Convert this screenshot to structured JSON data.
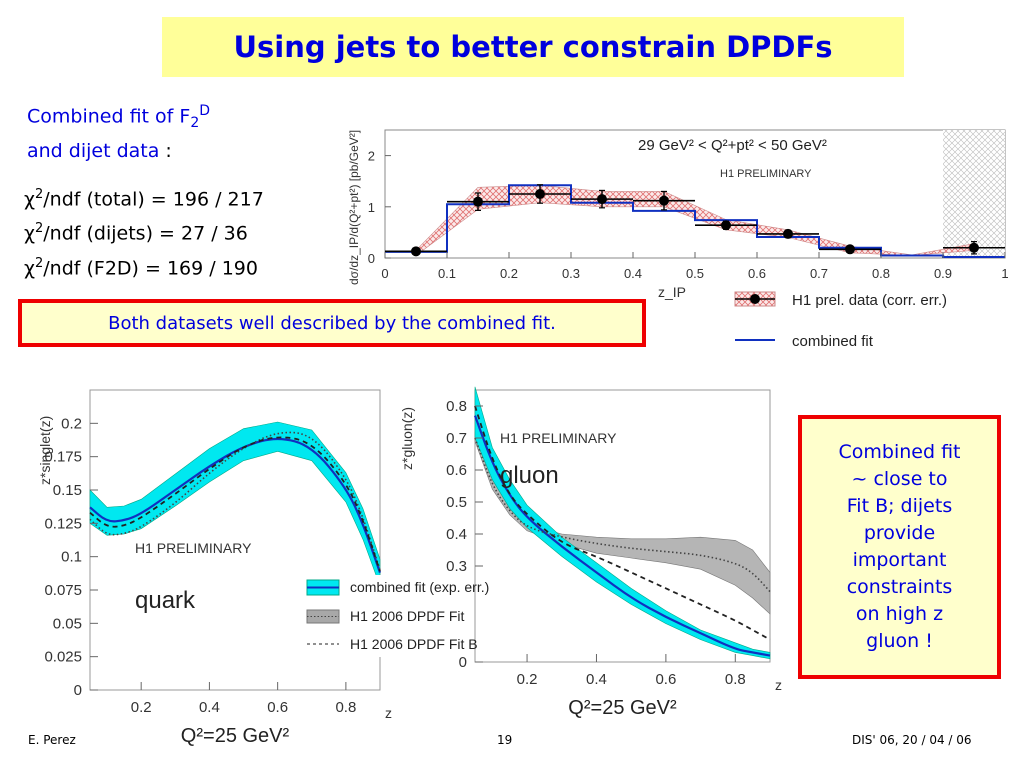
{
  "slide": {
    "title": "Using jets to better constrain DPDFs",
    "intro_line1_prefix": "Combined fit of F",
    "intro_sub": "2",
    "intro_sup": "D",
    "intro_line2": "and dijet data",
    "intro_colon": " :",
    "chi2": [
      {
        "symbol": "χ",
        "sup": "2",
        "text": "/ndf (total) = 196 / 217"
      },
      {
        "symbol": "χ",
        "sup": "2",
        "text": "/ndf (dijets) = 27 / 36"
      },
      {
        "symbol": "χ",
        "sup": "2",
        "text": "/ndf (F2D) = 169 / 190"
      }
    ],
    "callout_left": "Both datasets well described by the combined fit.",
    "callout_right": [
      "Combined fit",
      "~ close to",
      "Fit B; dijets",
      "provide",
      "important",
      "constraints",
      "on high z",
      "gluon !"
    ],
    "footer": {
      "author": "E. Perez",
      "page": "19",
      "conference": "DIS' 06, 20 / 04 / 06"
    },
    "colors": {
      "title_bg": "#ffff99",
      "title_text": "#0000dd",
      "callout_border": "#ee0000",
      "callout_bg": "#ffffcc",
      "band_cyan": "#00e8f0",
      "fit_blue": "#1030c0",
      "gray_band": "#a8a8a8"
    }
  },
  "chart_data": [
    {
      "type": "line",
      "title": "29 GeV² < Q²+pt² < 50 GeV²",
      "annotation": "H1 PRELIMINARY",
      "xlabel": "z_IP",
      "ylabel": "dσ/dz_IP/d(Q²+pt²) [pb/GeV²]",
      "xlim": [
        0,
        1
      ],
      "ylim": [
        0,
        2.5
      ],
      "xticks": [
        "0",
        "0.1",
        "0.2",
        "0.3",
        "0.4",
        "0.5",
        "0.6",
        "0.7",
        "0.8",
        "0.9",
        "1"
      ],
      "yticks": [
        "0",
        "1",
        "2"
      ],
      "bins": [
        0,
        0.1,
        0.2,
        0.3,
        0.4,
        0.5,
        0.6,
        0.7,
        0.8,
        0.9,
        1.0
      ],
      "series": [
        {
          "name": "H1 prel. data (corr. err.)",
          "x": [
            0.05,
            0.15,
            0.25,
            0.35,
            0.45,
            0.55,
            0.65,
            0.75,
            0.85,
            0.95
          ],
          "values": [
            0.13,
            1.1,
            1.25,
            1.15,
            1.12,
            0.64,
            0.47,
            0.17,
            null,
            0.2
          ],
          "errors": [
            0.03,
            0.17,
            0.18,
            0.17,
            0.18,
            0.08,
            0.07,
            0.03,
            null,
            0.12
          ]
        },
        {
          "name": "combined fit",
          "values": [
            0.12,
            1.05,
            1.42,
            1.08,
            0.92,
            0.74,
            0.41,
            0.2,
            0.05,
            0.02
          ]
        }
      ],
      "band": {
        "lower": [
          0.05,
          0.95,
          1.08,
          1.0,
          1.0,
          0.55,
          0.4,
          0.1,
          0.05,
          0.15
        ],
        "upper": [
          0.15,
          1.38,
          1.42,
          1.3,
          1.3,
          0.75,
          0.55,
          0.23,
          0.06,
          0.28
        ]
      },
      "shaded_region": [
        0.9,
        1.0
      ],
      "legend": [
        "H1 prel. data (corr. err.)",
        "combined fit"
      ]
    },
    {
      "type": "line",
      "annotation": "H1 PRELIMINARY",
      "label": "quark",
      "xlabel": "z",
      "subtitle": "Q²=25 GeV²",
      "ylabel": "z*singlet(z)",
      "xlim": [
        0.05,
        0.9
      ],
      "ylim": [
        0,
        0.225
      ],
      "xticks": [
        "0.2",
        "0.4",
        "0.6",
        "0.8"
      ],
      "yticks": [
        "0",
        "0.025",
        "0.05",
        "0.075",
        "0.1",
        "0.125",
        "0.15",
        "0.175",
        "0.2"
      ],
      "x": [
        0.05,
        0.1,
        0.15,
        0.2,
        0.3,
        0.4,
        0.5,
        0.6,
        0.7,
        0.8,
        0.85,
        0.9
      ],
      "series": [
        {
          "name": "combined fit (exp. err.)",
          "values": [
            0.137,
            0.126,
            0.127,
            0.132,
            0.15,
            0.168,
            0.183,
            0.19,
            0.183,
            0.152,
            0.125,
            0.088
          ],
          "band_lower": [
            0.125,
            0.116,
            0.117,
            0.121,
            0.138,
            0.156,
            0.172,
            0.179,
            0.172,
            0.141,
            0.113,
            0.078
          ],
          "band_upper": [
            0.15,
            0.137,
            0.138,
            0.143,
            0.162,
            0.181,
            0.196,
            0.201,
            0.195,
            0.163,
            0.136,
            0.098
          ]
        },
        {
          "name": "H1 2006 DPDF Fit",
          "values": [
            0.128,
            0.116,
            0.117,
            0.122,
            0.14,
            0.163,
            0.182,
            0.194,
            0.192,
            0.16,
            0.13,
            0.09
          ]
        },
        {
          "name": "H1 2006 DPDF Fit B",
          "values": [
            0.133,
            0.122,
            0.123,
            0.129,
            0.147,
            0.166,
            0.183,
            0.191,
            0.186,
            0.156,
            0.128,
            0.089
          ]
        }
      ],
      "legend": [
        "combined fit (exp. err.)",
        "H1 2006 DPDF Fit",
        "H1 2006 DPDF Fit B"
      ]
    },
    {
      "type": "line",
      "annotation": "H1 PRELIMINARY",
      "label": "gluon",
      "xlabel": "z",
      "subtitle": "Q²=25 GeV²",
      "ylabel": "z*gluon(z)",
      "xlim": [
        0.05,
        0.9
      ],
      "ylim": [
        0,
        0.85
      ],
      "xticks": [
        "0.2",
        "0.4",
        "0.6",
        "0.8"
      ],
      "yticks": [
        "0",
        "0.3",
        "0.4",
        "0.5",
        "0.6",
        "0.7",
        "0.8"
      ],
      "x": [
        0.05,
        0.1,
        0.15,
        0.2,
        0.3,
        0.4,
        0.5,
        0.6,
        0.7,
        0.8,
        0.85,
        0.9
      ],
      "series": [
        {
          "name": "combined fit (exp. err.)",
          "values": [
            0.77,
            0.62,
            0.52,
            0.45,
            0.36,
            0.28,
            0.2,
            0.14,
            0.09,
            0.04,
            0.03,
            0.02
          ],
          "band_lower": [
            0.7,
            0.57,
            0.48,
            0.42,
            0.33,
            0.25,
            0.18,
            0.12,
            0.07,
            0.03,
            0.02,
            0.01
          ],
          "band_upper": [
            0.86,
            0.67,
            0.57,
            0.49,
            0.39,
            0.31,
            0.23,
            0.16,
            0.1,
            0.06,
            0.04,
            0.03
          ]
        },
        {
          "name": "H1 2006 DPDF Fit",
          "values": [
            0.7,
            0.55,
            0.47,
            0.42,
            0.39,
            0.37,
            0.355,
            0.345,
            0.335,
            0.31,
            0.28,
            0.22
          ],
          "band_lower": [
            0.69,
            0.54,
            0.46,
            0.41,
            0.37,
            0.34,
            0.325,
            0.31,
            0.29,
            0.24,
            0.2,
            0.15
          ],
          "band_upper": [
            0.72,
            0.57,
            0.48,
            0.43,
            0.4,
            0.39,
            0.385,
            0.385,
            0.39,
            0.38,
            0.35,
            0.28
          ]
        },
        {
          "name": "H1 2006 DPDF Fit B",
          "values": [
            0.8,
            0.63,
            0.52,
            0.46,
            0.37,
            0.33,
            0.28,
            0.23,
            0.18,
            0.13,
            0.1,
            0.07
          ]
        }
      ],
      "legend": [
        "combined fit (exp. err.)",
        "H1 2006 DPDF Fit",
        "H1 2006 DPDF Fit B"
      ]
    }
  ]
}
